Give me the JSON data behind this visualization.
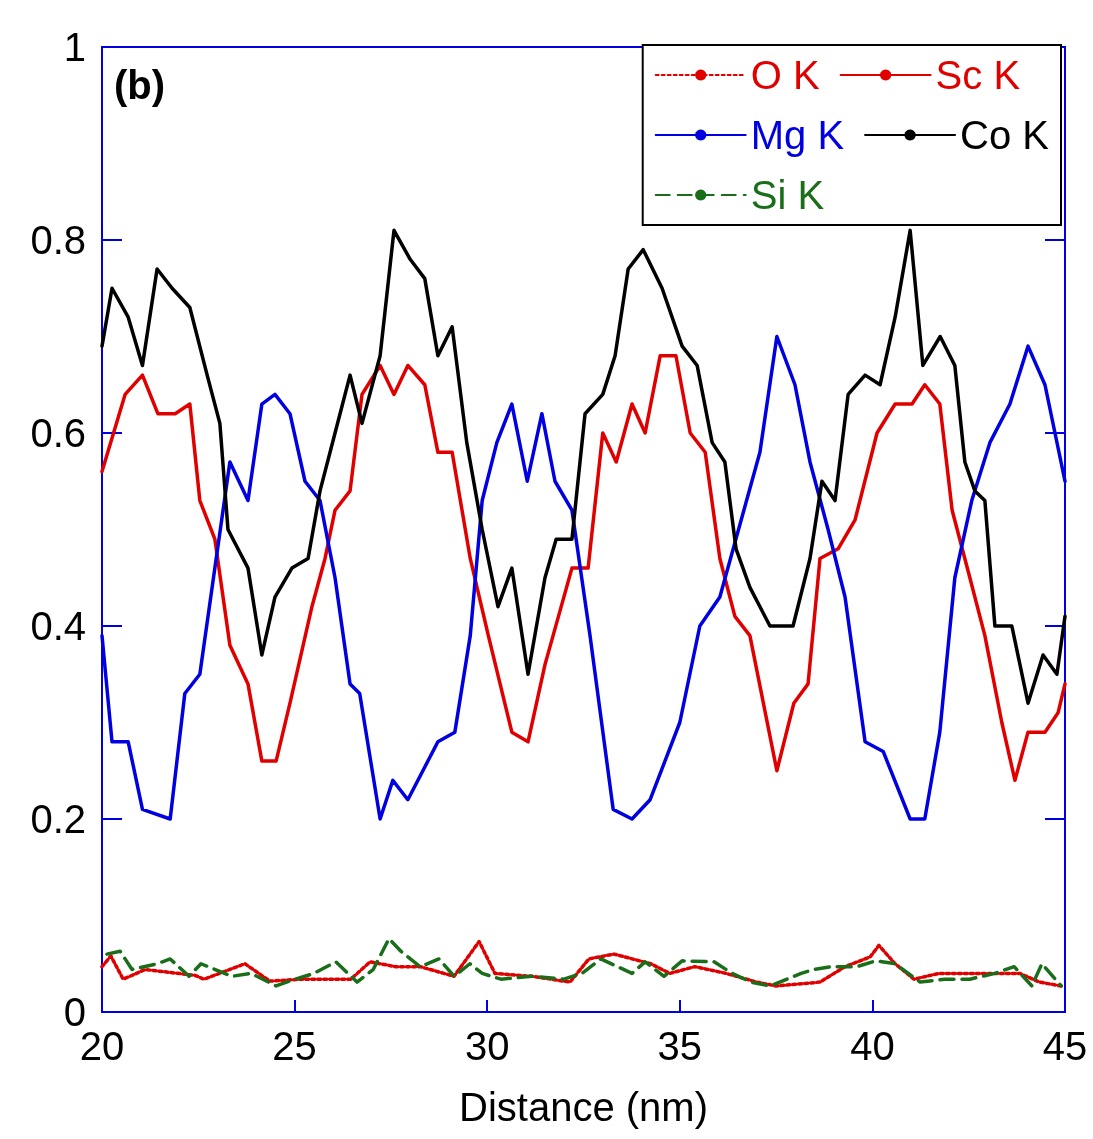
{
  "chart_data": {
    "type": "line",
    "xlabel": "Distance (nm)",
    "annotations": [
      "(b)"
    ],
    "legend": "top right",
    "grid": false,
    "marker": "none",
    "xlim": [
      20,
      45
    ],
    "xticks": [
      20,
      25,
      30,
      35,
      40,
      45
    ],
    "ylim": [
      0,
      1
    ],
    "yticks": [
      0,
      0.2,
      0.4,
      0.6,
      0.8,
      1
    ],
    "series": [
      {
        "name": "O K",
        "color": "#e00000",
        "line_style": "dotted",
        "x": [
          20.0,
          20.23,
          20.55,
          21.12,
          22.41,
          22.65,
          23.71,
          24.36,
          25.17,
          26.46,
          26.96,
          27.61,
          28.26,
          29.14,
          29.79,
          30.2,
          31.16,
          32.15,
          32.64,
          33.29,
          34.25,
          34.74,
          35.39,
          36.2,
          37.0,
          37.5,
          38.64,
          39.29,
          39.94,
          40.17,
          40.59,
          41.08,
          41.73,
          42.85,
          43.83,
          44.33,
          44.9
        ],
        "values": [
          0.047,
          0.058,
          0.034,
          0.044,
          0.038,
          0.034,
          0.05,
          0.032,
          0.034,
          0.034,
          0.052,
          0.047,
          0.047,
          0.037,
          0.073,
          0.04,
          0.037,
          0.031,
          0.055,
          0.06,
          0.05,
          0.04,
          0.047,
          0.04,
          0.031,
          0.027,
          0.031,
          0.047,
          0.057,
          0.069,
          0.05,
          0.034,
          0.04,
          0.04,
          0.04,
          0.031,
          0.027
        ]
      },
      {
        "name": "Sc K",
        "color": "#e00000",
        "line_style": "solid",
        "x": [
          20,
          20.6,
          21.05,
          21.45,
          21.9,
          22.28,
          22.54,
          22.93,
          23.32,
          23.79,
          24.15,
          24.52,
          24.88,
          25.45,
          25.79,
          26.05,
          26.44,
          26.75,
          27.22,
          27.58,
          27.94,
          28.38,
          28.72,
          29.09,
          29.56,
          30.03,
          30.64,
          31.06,
          31.5,
          32.2,
          32.62,
          33.0,
          33.35,
          33.76,
          34.1,
          34.49,
          34.9,
          35.27,
          35.66,
          36.04,
          36.43,
          36.82,
          37.52,
          37.96,
          38.33,
          38.64,
          39.11,
          39.55,
          40.12,
          40.59,
          41.03,
          41.36,
          41.75,
          42.07,
          42.53,
          42.92,
          43.36,
          43.7,
          44.04,
          44.48,
          44.82,
          45
        ],
        "values": [
          0.56,
          0.64,
          0.66,
          0.62,
          0.62,
          0.63,
          0.53,
          0.49,
          0.38,
          0.34,
          0.26,
          0.26,
          0.32,
          0.42,
          0.47,
          0.52,
          0.54,
          0.64,
          0.67,
          0.64,
          0.67,
          0.65,
          0.58,
          0.58,
          0.47,
          0.39,
          0.29,
          0.28,
          0.36,
          0.46,
          0.46,
          0.6,
          0.57,
          0.63,
          0.6,
          0.68,
          0.68,
          0.6,
          0.58,
          0.47,
          0.41,
          0.39,
          0.25,
          0.32,
          0.34,
          0.47,
          0.48,
          0.51,
          0.6,
          0.63,
          0.63,
          0.65,
          0.63,
          0.52,
          0.45,
          0.39,
          0.3,
          0.24,
          0.29,
          0.29,
          0.31,
          0.34
        ]
      },
      {
        "name": "Mg K",
        "color": "#0000e0",
        "line_style": "solid",
        "x": [
          20,
          20.26,
          20.68,
          21.05,
          21.77,
          22.15,
          22.54,
          22.93,
          23.32,
          23.79,
          24.15,
          24.49,
          24.88,
          25.27,
          25.66,
          26.05,
          26.44,
          26.69,
          27.22,
          27.55,
          27.94,
          28.72,
          29.16,
          29.56,
          29.87,
          30.25,
          30.64,
          31.04,
          31.42,
          31.76,
          32.2,
          32.67,
          33.27,
          33.76,
          34.23,
          35.0,
          35.52,
          36.04,
          37.08,
          37.52,
          37.99,
          38.38,
          38.85,
          39.29,
          39.81,
          40.28,
          40.98,
          41.36,
          41.75,
          42.14,
          42.58,
          43.05,
          43.57,
          44.04,
          44.48,
          45
        ],
        "values": [
          0.39,
          0.28,
          0.28,
          0.21,
          0.2,
          0.33,
          0.35,
          0.46,
          0.57,
          0.53,
          0.63,
          0.64,
          0.62,
          0.55,
          0.53,
          0.45,
          0.34,
          0.33,
          0.2,
          0.24,
          0.22,
          0.28,
          0.29,
          0.39,
          0.53,
          0.59,
          0.63,
          0.55,
          0.62,
          0.55,
          0.52,
          0.39,
          0.21,
          0.2,
          0.22,
          0.3,
          0.4,
          0.43,
          0.58,
          0.7,
          0.65,
          0.57,
          0.5,
          0.43,
          0.28,
          0.27,
          0.2,
          0.2,
          0.29,
          0.45,
          0.53,
          0.59,
          0.63,
          0.69,
          0.65,
          0.55
        ]
      },
      {
        "name": "Co K",
        "color": "#000000",
        "line_style": "solid",
        "x": [
          20,
          20.26,
          20.68,
          21.05,
          21.43,
          21.82,
          22.28,
          22.73,
          23.06,
          23.27,
          23.79,
          24.15,
          24.49,
          24.93,
          25.35,
          25.66,
          26.05,
          26.44,
          26.75,
          27.22,
          27.58,
          28.0,
          28.38,
          28.72,
          29.09,
          29.47,
          29.87,
          30.28,
          30.64,
          31.06,
          31.5,
          31.79,
          32.2,
          32.54,
          33.0,
          33.32,
          33.66,
          34.05,
          34.54,
          35.06,
          35.45,
          35.84,
          36.17,
          36.46,
          36.82,
          37.34,
          37.94,
          38.38,
          38.69,
          39.03,
          39.37,
          39.81,
          40.2,
          40.59,
          40.98,
          41.31,
          41.76,
          42.14,
          42.4,
          42.66,
          42.92,
          43.18,
          43.62,
          44.04,
          44.43,
          44.79,
          45
        ],
        "values": [
          0.69,
          0.75,
          0.72,
          0.67,
          0.77,
          0.75,
          0.73,
          0.66,
          0.61,
          0.5,
          0.46,
          0.37,
          0.43,
          0.46,
          0.47,
          0.54,
          0.6,
          0.66,
          0.61,
          0.68,
          0.81,
          0.78,
          0.76,
          0.68,
          0.71,
          0.59,
          0.5,
          0.42,
          0.46,
          0.35,
          0.45,
          0.49,
          0.49,
          0.62,
          0.64,
          0.68,
          0.77,
          0.79,
          0.75,
          0.69,
          0.67,
          0.59,
          0.57,
          0.48,
          0.44,
          0.4,
          0.4,
          0.47,
          0.55,
          0.53,
          0.64,
          0.66,
          0.65,
          0.72,
          0.81,
          0.67,
          0.7,
          0.67,
          0.57,
          0.54,
          0.53,
          0.4,
          0.4,
          0.32,
          0.37,
          0.35,
          0.41
        ]
      },
      {
        "name": "Si K",
        "color": "#1a6e1a",
        "line_style": "dashed",
        "x": [
          20.13,
          20.47,
          20.78,
          21.43,
          21.77,
          22.26,
          22.57,
          23.37,
          23.87,
          24.52,
          25.01,
          25.5,
          26.07,
          26.62,
          27.04,
          27.45,
          27.76,
          28.26,
          28.75,
          29.14,
          29.55,
          29.87,
          30.36,
          31.16,
          31.99,
          32.46,
          32.95,
          33.76,
          34.1,
          34.59,
          35.06,
          35.89,
          36.36,
          36.85,
          37.34,
          38.15,
          38.48,
          38.95,
          39.6,
          40.09,
          40.59,
          41.24,
          41.88,
          42.53,
          43.18,
          43.68,
          44.14,
          44.4,
          44.9
        ],
        "values": [
          0.06,
          0.063,
          0.044,
          0.05,
          0.055,
          0.037,
          0.05,
          0.037,
          0.04,
          0.027,
          0.034,
          0.04,
          0.052,
          0.031,
          0.044,
          0.076,
          0.063,
          0.047,
          0.055,
          0.037,
          0.05,
          0.04,
          0.034,
          0.037,
          0.034,
          0.04,
          0.055,
          0.04,
          0.052,
          0.037,
          0.053,
          0.052,
          0.04,
          0.031,
          0.027,
          0.04,
          0.044,
          0.047,
          0.047,
          0.053,
          0.05,
          0.031,
          0.034,
          0.034,
          0.04,
          0.047,
          0.027,
          0.05,
          0.027
        ]
      }
    ]
  }
}
